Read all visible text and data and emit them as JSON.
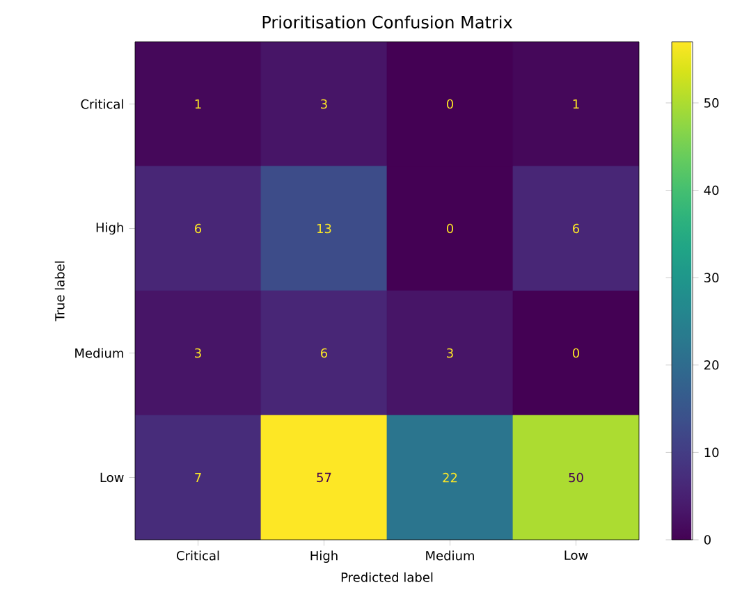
{
  "chart_data": {
    "type": "heatmap",
    "title": "Prioritisation Confusion Matrix",
    "xlabel": "Predicted label",
    "ylabel": "True label",
    "categories": [
      "Critical",
      "High",
      "Medium",
      "Low"
    ],
    "y_categories": [
      "Critical",
      "High",
      "Medium",
      "Low"
    ],
    "cells": [
      [
        1,
        3,
        0,
        1
      ],
      [
        6,
        13,
        0,
        6
      ],
      [
        3,
        6,
        3,
        0
      ],
      [
        7,
        57,
        22,
        50
      ]
    ],
    "clim": [
      0,
      57
    ],
    "cticks": [
      0,
      10,
      20,
      30,
      40,
      50
    ],
    "data_labels": true
  }
}
